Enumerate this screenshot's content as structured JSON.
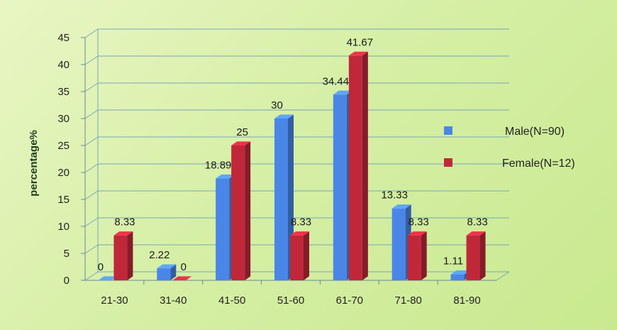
{
  "chart_data": {
    "type": "bar",
    "categories": [
      "21-30",
      "31-40",
      "41-50",
      "51-60",
      "61-70",
      "71-80",
      "81-90"
    ],
    "series": [
      {
        "name": "Male(N=90)",
        "values": [
          0,
          2.22,
          18.89,
          30,
          34.44,
          13.33,
          1.11
        ],
        "labels": [
          "0",
          "2.22",
          "18.89",
          "30",
          "34.44",
          "13.33",
          "1.11"
        ],
        "color": "#4a86e8"
      },
      {
        "name": "Female(N=12)",
        "values": [
          8.33,
          0,
          25,
          8.33,
          41.67,
          8.33,
          8.33
        ],
        "labels": [
          "8.33",
          "0",
          "25",
          "8.33",
          "41.67",
          "8.33",
          "8.33"
        ],
        "color": "#c0283a"
      }
    ],
    "ylabel": "percentage%",
    "ylim": [
      0,
      45
    ],
    "yticks": [
      "0",
      "5",
      "10",
      "15",
      "20",
      "25",
      "30",
      "35",
      "40",
      "45"
    ],
    "grid": true,
    "legend": "right",
    "style": "3d-clustered-column"
  }
}
